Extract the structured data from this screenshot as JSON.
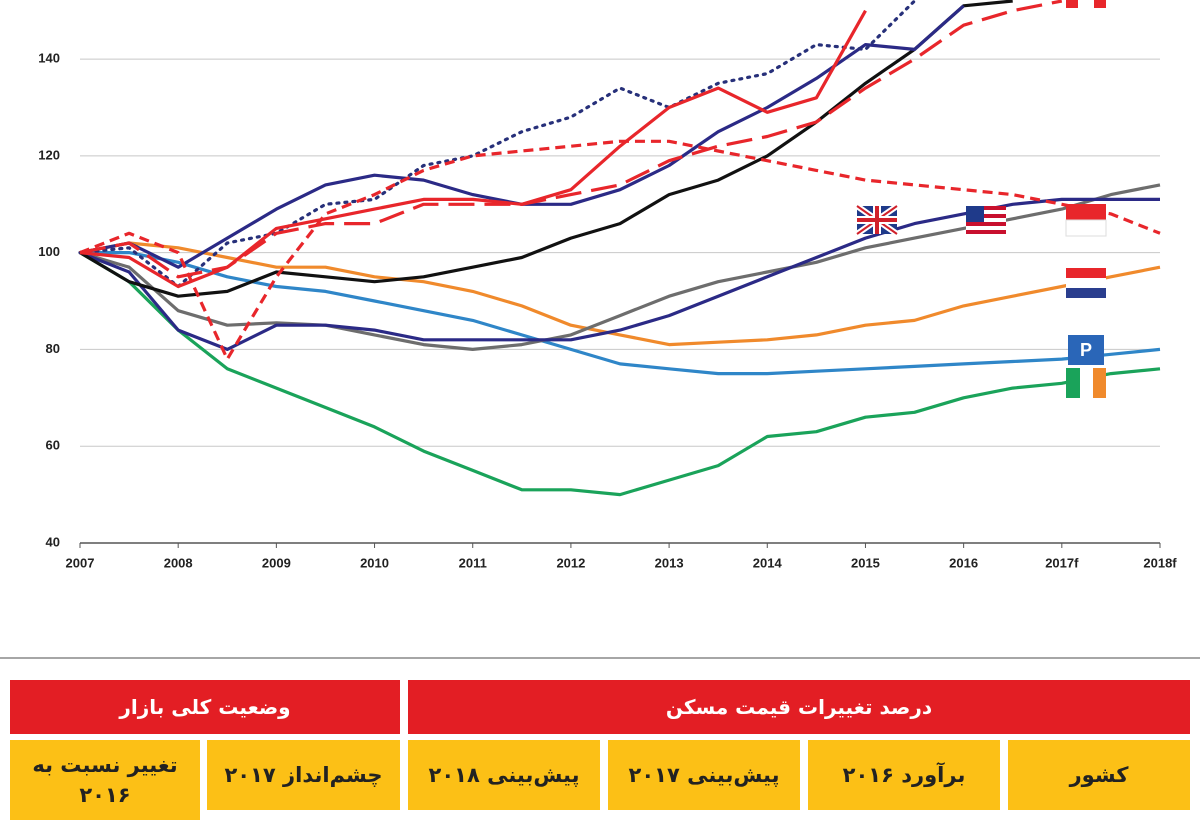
{
  "chart_data": {
    "type": "line",
    "x": [
      2007,
      2007.5,
      2008,
      2008.5,
      2009,
      2009.5,
      2010,
      2010.5,
      2011,
      2011.5,
      2012,
      2012.5,
      2013,
      2013.5,
      2014,
      2014.5,
      2015,
      2015.5,
      2016,
      2016.5,
      2017,
      2017.5,
      2018
    ],
    "xlim": [
      2007,
      2018
    ],
    "xticks": [
      2007,
      2008,
      2009,
      2010,
      2011,
      2012,
      2013,
      2014,
      2015,
      2016,
      {
        "value": 2017,
        "label": "2017f"
      },
      {
        "value": 2018,
        "label": "2018f"
      }
    ],
    "ylim": [
      40,
      152
    ],
    "yticks": [
      40,
      60,
      80,
      100,
      120,
      140
    ],
    "grid": true,
    "series": [
      {
        "color": "#1aa35a",
        "dash": "solid",
        "values": [
          100,
          94,
          84,
          76,
          72,
          68,
          64,
          59,
          55,
          51,
          51,
          50,
          53,
          56,
          62,
          63,
          66,
          67,
          70,
          72,
          73,
          75,
          76
        ]
      },
      {
        "color": "#2f86c8",
        "dash": "solid",
        "values": [
          100,
          100,
          98,
          95,
          93,
          92,
          90,
          88,
          86,
          83,
          80,
          77,
          76,
          75,
          75,
          75.5,
          76,
          76.5,
          77,
          77.5,
          78,
          79,
          80
        ]
      },
      {
        "color": "#f08a2c",
        "dash": "solid",
        "values": [
          100,
          102,
          101,
          99,
          97,
          97,
          95,
          94,
          92,
          89,
          85,
          83,
          81,
          81.5,
          82,
          83,
          85,
          86,
          89,
          91,
          93,
          95,
          97
        ]
      },
      {
        "color": "#6d6d6d",
        "dash": "solid",
        "values": [
          100,
          97,
          88,
          85,
          85.5,
          85,
          83,
          81,
          80,
          81,
          83,
          87,
          91,
          94,
          96,
          98,
          101,
          103,
          105,
          107,
          109,
          112,
          114
        ]
      },
      {
        "color": "#2b2a86",
        "dash": "solid",
        "values": [
          100,
          96,
          84,
          80,
          85,
          85,
          84,
          82,
          82,
          82,
          82,
          84,
          87,
          91,
          95,
          99,
          103,
          106,
          108,
          110,
          111,
          111,
          111
        ]
      },
      {
        "color": "#111111",
        "dash": "solid",
        "values": [
          100,
          94,
          91,
          92,
          96,
          95,
          94,
          95,
          97,
          99,
          103,
          106,
          112,
          115,
          120,
          127,
          135,
          142,
          151,
          152,
          null,
          null,
          null
        ]
      },
      {
        "color": "#2b2a86",
        "dash": "solid",
        "values": [
          100,
          102,
          97,
          103,
          109,
          114,
          116,
          115,
          112,
          110,
          110,
          113,
          118,
          125,
          130,
          136,
          143,
          142,
          151,
          null,
          null,
          null,
          null
        ]
      },
      {
        "color": "#27307a",
        "dash": "dotted",
        "values": [
          100,
          101,
          93,
          102,
          104,
          110,
          111,
          118,
          120,
          125,
          128,
          134,
          130,
          135,
          137,
          143,
          142,
          152,
          null,
          null,
          null,
          null,
          null
        ]
      },
      {
        "color": "#e8262b",
        "dash": "solid",
        "values": [
          100,
          99,
          93,
          97,
          105,
          107,
          109,
          111,
          111,
          110,
          113,
          122,
          130,
          134,
          129,
          132,
          150,
          null,
          null,
          null,
          null,
          null,
          null
        ]
      },
      {
        "color": "#e8262b",
        "dash": "dashed",
        "values": [
          100,
          104,
          100,
          78,
          95,
          108,
          112,
          117,
          120,
          121,
          122,
          123,
          123,
          121,
          119,
          117,
          115,
          114,
          113,
          112,
          110,
          108,
          104
        ]
      },
      {
        "color": "#e8262b",
        "dash": "longdash",
        "values": [
          100,
          102,
          95,
          97,
          104,
          106,
          106,
          110,
          110,
          110,
          112,
          114,
          119,
          122,
          124,
          127,
          134,
          140,
          147,
          150,
          152,
          null,
          null
        ]
      }
    ]
  },
  "table": {
    "header": [
      "درصد تغییرات قیمت مسکن",
      "وضعیت کلی بازار"
    ],
    "columns": [
      "کشور",
      "برآورد ۲۰۱۶",
      "پیش‌بینی ۲۰۱۷",
      "پیش‌بینی ۲۰۱۸",
      "چشم‌انداز ۲۰۱۷",
      "تغییر نسبت به ۲۰۱۶"
    ]
  }
}
